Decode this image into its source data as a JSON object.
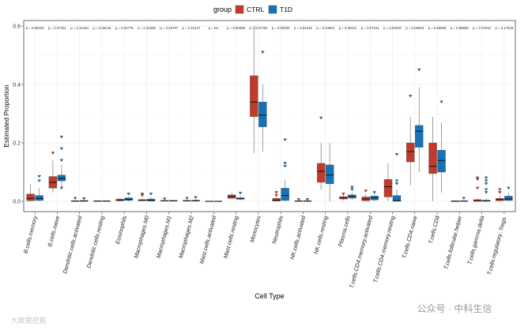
{
  "chart_data": {
    "type": "boxplot",
    "title": "",
    "xlabel": "Cell Type",
    "ylabel": "Estimated Proportion",
    "ylim": [
      -0.02,
      0.62
    ],
    "yticks": [
      0.0,
      0.2,
      0.4,
      0.6
    ],
    "ytick_labels": [
      "0.0",
      "0.2",
      "0.4",
      "0.6"
    ],
    "grid": true,
    "legend": {
      "title": "group",
      "placement": "top",
      "entries": [
        "CTRL",
        "T1D"
      ]
    },
    "colors": {
      "CTRL": "#c23b2a",
      "T1D": "#1771b6"
    },
    "categories": [
      "B.cells.memory",
      "B.cells.naive",
      "Dendritic.cells.activated",
      "Dendritic.cells.resting",
      "Eosinophils",
      "Macrophages.M0",
      "Macrophages.M1",
      "Macrophages.M2",
      "Mast.cells.activated",
      "Mast.cells.resting",
      "Monocytes",
      "Neutrophils",
      "NK.cells.activated",
      "NK.cells.resting",
      "Plasma.cells",
      "T.cells.CD4.memory.activated",
      "T.cells.CD4.memory.resting",
      "T.cells.CD4.naive",
      "T.cells.CD8",
      "T.cells.follicular.helper",
      "T.cells.gamma.delta",
      "T.cells.regulatory..Tregs."
    ],
    "p_values": [
      "p = 0.89433",
      "p = 0.07321",
      "p = 0.10154",
      "p = 0.09148",
      "p = 0.32775",
      "p = 0.42295",
      "p = 0.25797",
      "p = 0.10127",
      "p = NA",
      "p = 0.00058",
      "p = 0.01794",
      "p = 0.00000",
      "p = 0.91319",
      "p = 0.24984",
      "p = 0.00211",
      "p = 0.07101",
      "p = 0.00030",
      "p = 0.00603",
      "p = 0.66608",
      "p = 0.88588",
      "p = 0.70010",
      "p = 0.17533"
    ],
    "series": [
      {
        "name": "CTRL",
        "boxes": [
          {
            "stats": [
              0,
              0.002,
              0.01,
              0.025,
              0.06
            ],
            "outliers": []
          },
          {
            "stats": [
              0.03,
              0.045,
              0.065,
              0.085,
              0.14
            ],
            "outliers": [
              0.165
            ]
          },
          {
            "stats": [
              0,
              0,
              0.001,
              0.002,
              0.004
            ],
            "outliers": [
              0.01
            ]
          },
          {
            "stats": [
              0,
              0,
              0.001,
              0.002,
              0.003
            ],
            "outliers": []
          },
          {
            "stats": [
              0,
              0.002,
              0.004,
              0.008,
              0.012
            ],
            "outliers": []
          },
          {
            "stats": [
              0,
              0.002,
              0.004,
              0.006,
              0.01
            ],
            "outliers": [
              0.02,
              0.025
            ]
          },
          {
            "stats": [
              0,
              0.001,
              0.002,
              0.003,
              0.005
            ],
            "outliers": [
              0.008
            ]
          },
          {
            "stats": [
              0,
              0.001,
              0.002,
              0.003,
              0.005
            ],
            "outliers": [
              0.01
            ]
          },
          {
            "stats": [
              0,
              0,
              0,
              0.001,
              0.001
            ],
            "outliers": []
          },
          {
            "stats": [
              0.007,
              0.01,
              0.017,
              0.022,
              0.03
            ],
            "outliers": []
          },
          {
            "stats": [
              0.165,
              0.29,
              0.34,
              0.43,
              0.6
            ],
            "outliers": []
          },
          {
            "stats": [
              0,
              0.001,
              0.004,
              0.01,
              0.015
            ],
            "outliers": [
              0.02,
              0.03
            ]
          },
          {
            "stats": [
              0,
              0,
              0.001,
              0.002,
              0.004
            ],
            "outliers": [
              0.006
            ]
          },
          {
            "stats": [
              0.04,
              0.065,
              0.103,
              0.13,
              0.2
            ],
            "outliers": [
              0.285
            ]
          },
          {
            "stats": [
              0.003,
              0.008,
              0.012,
              0.016,
              0.022
            ],
            "outliers": [
              0.025
            ]
          },
          {
            "stats": [
              0,
              0.002,
              0.008,
              0.015,
              0.025
            ],
            "outliers": [
              0.035
            ]
          },
          {
            "stats": [
              0,
              0.015,
              0.05,
              0.075,
              0.13
            ],
            "outliers": []
          },
          {
            "stats": [
              0.055,
              0.135,
              0.17,
              0.2,
              0.29
            ],
            "outliers": [
              0.36
            ]
          },
          {
            "stats": [
              0,
              0.095,
              0.12,
              0.2,
              0.29
            ],
            "outliers": []
          },
          {
            "stats": [
              0,
              0,
              0.001,
              0.001,
              0.002
            ],
            "outliers": []
          },
          {
            "stats": [
              0,
              0,
              0.002,
              0.006,
              0.01
            ],
            "outliers": [
              0.045,
              0.075,
              0.08
            ]
          },
          {
            "stats": [
              0,
              0.002,
              0.006,
              0.01,
              0.02
            ],
            "outliers": [
              0.03,
              0.04
            ]
          }
        ]
      },
      {
        "name": "T1D",
        "boxes": [
          {
            "stats": [
              0,
              0.003,
              0.01,
              0.02,
              0.045
            ],
            "outliers": [
              0.07,
              0.085
            ]
          },
          {
            "stats": [
              0.045,
              0.07,
              0.078,
              0.09,
              0.125
            ],
            "outliers": [
              0.045,
              0.14,
              0.18,
              0.22
            ]
          },
          {
            "stats": [
              0,
              0,
              0.001,
              0.003,
              0.005
            ],
            "outliers": [
              0.009
            ]
          },
          {
            "stats": [
              0,
              0,
              0.001,
              0.002,
              0.003
            ],
            "outliers": []
          },
          {
            "stats": [
              0,
              0.003,
              0.007,
              0.012,
              0.015
            ],
            "outliers": [
              0.025
            ]
          },
          {
            "stats": [
              0,
              0.001,
              0.004,
              0.008,
              0.015
            ],
            "outliers": [
              0.025
            ]
          },
          {
            "stats": [
              0,
              0.001,
              0.002,
              0.003,
              0.005
            ],
            "outliers": []
          },
          {
            "stats": [
              0,
              0.001,
              0.002,
              0.004,
              0.007
            ],
            "outliers": [
              0.013
            ]
          },
          {
            "stats": [
              0,
              0,
              0,
              0.001,
              0.001
            ],
            "outliers": []
          },
          {
            "stats": [
              0.003,
              0.007,
              0.01,
              0.012,
              0.02
            ],
            "outliers": [
              0.028
            ]
          },
          {
            "stats": [
              0.17,
              0.255,
              0.295,
              0.34,
              0.4
            ],
            "outliers": [
              0.51
            ]
          },
          {
            "stats": [
              0,
              0.003,
              0.02,
              0.045,
              0.075
            ],
            "outliers": [
              0.12,
              0.13,
              0.21
            ]
          },
          {
            "stats": [
              0,
              0,
              0.001,
              0.002,
              0.004
            ],
            "outliers": [
              0.006
            ]
          },
          {
            "stats": [
              0,
              0.06,
              0.09,
              0.125,
              0.2
            ],
            "outliers": []
          },
          {
            "stats": [
              0.005,
              0.011,
              0.017,
              0.022,
              0.03
            ],
            "outliers": [
              0.04,
              0.048
            ]
          },
          {
            "stats": [
              0,
              0.005,
              0.012,
              0.018,
              0.022
            ],
            "outliers": [
              0.03
            ]
          },
          {
            "stats": [
              0,
              0,
              0.003,
              0.02,
              0.04
            ],
            "outliers": [
              0.06,
              0.07,
              0.16
            ]
          },
          {
            "stats": [
              0.1,
              0.185,
              0.24,
              0.26,
              0.39
            ],
            "outliers": [
              0.45
            ]
          },
          {
            "stats": [
              0.03,
              0.1,
              0.14,
              0.175,
              0.27
            ],
            "outliers": [
              0.34
            ]
          },
          {
            "stats": [
              0,
              0,
              0.001,
              0.002,
              0.004
            ],
            "outliers": [
              0.01
            ]
          },
          {
            "stats": [
              0,
              0,
              0.002,
              0.004,
              0.01
            ],
            "outliers": [
              0.03,
              0.04,
              0.06,
              0.07,
              0.08
            ]
          },
          {
            "stats": [
              0,
              0.003,
              0.008,
              0.018,
              0.03
            ],
            "outliers": [
              0.045
            ]
          }
        ]
      }
    ]
  },
  "watermark": {
    "right": "公众号 · 中科生信",
    "left": "大数据挖掘"
  }
}
